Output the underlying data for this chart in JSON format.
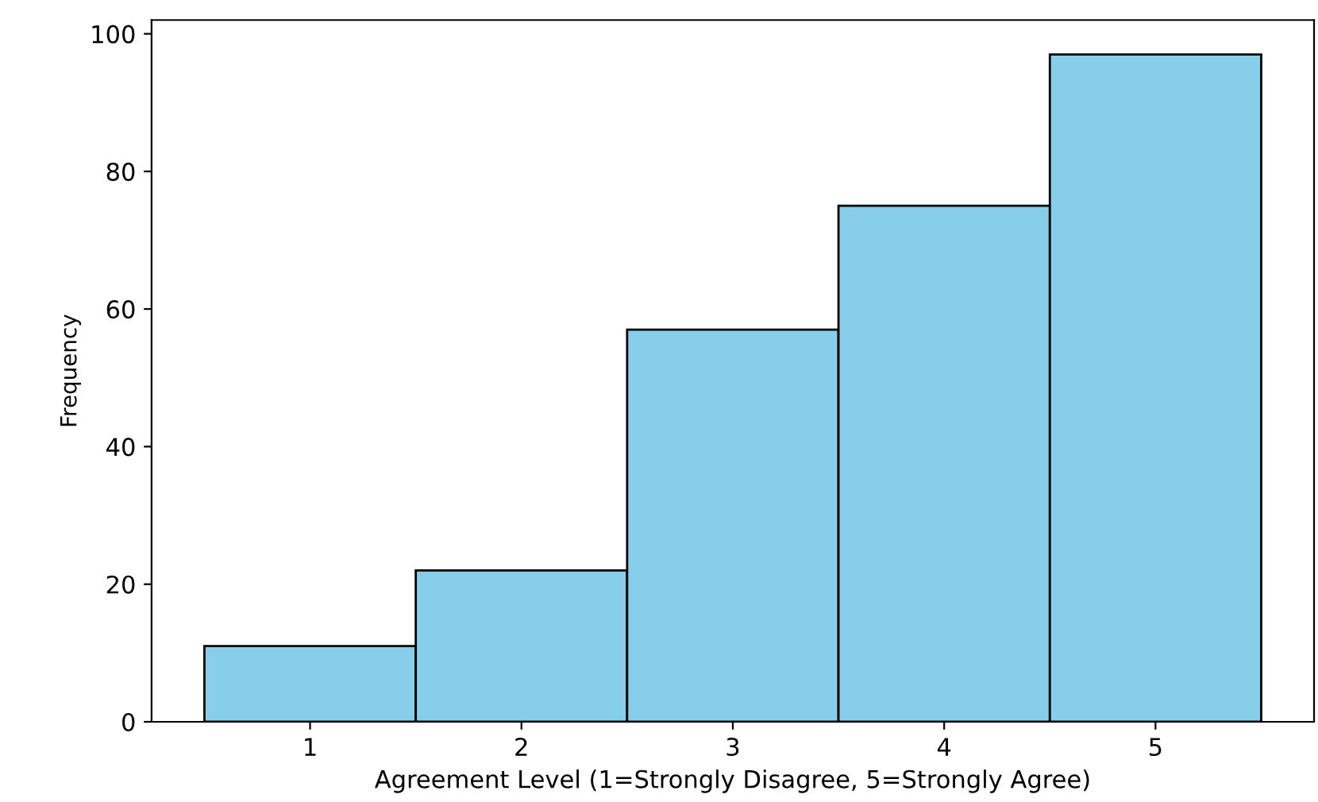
{
  "chart_data": {
    "type": "histogram",
    "xlabel": "Agreement Level (1=Strongly Disagree, 5=Strongly Agree)",
    "ylabel": "Frequency",
    "bins": [
      0.5,
      1.5,
      2.5,
      3.5,
      4.5,
      5.5
    ],
    "values": [
      11,
      22,
      57,
      75,
      97
    ],
    "color": "#87ceeb",
    "xlim": [
      0.25,
      5.75
    ],
    "ylim": [
      0,
      102
    ],
    "xticks": [
      1,
      2,
      3,
      4,
      5
    ],
    "yticks": [
      0,
      20,
      40,
      60,
      80,
      100
    ],
    "grid": false
  }
}
